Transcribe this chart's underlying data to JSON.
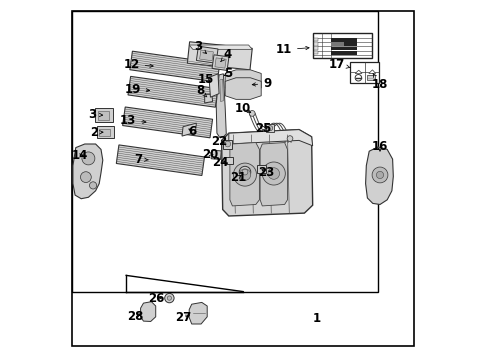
{
  "bg_color": "#ffffff",
  "border_color": "#000000",
  "fig_width": 4.9,
  "fig_height": 3.6,
  "dpi": 100,
  "label_fontsize": 8.5,
  "label_color": "#000000",
  "part_edge_color": "#333333",
  "part_face_color": "#d8d8d8",
  "part_lw": 0.7,
  "cell_line_color": "#555555",
  "cell_line_lw": 0.35,
  "outer_border": [
    0.02,
    0.04,
    0.97,
    0.97
  ],
  "inner_border": [
    0.02,
    0.19,
    0.87,
    0.97
  ],
  "diagonal_line": [
    [
      0.17,
      0.19
    ],
    [
      0.495,
      0.19
    ]
  ],
  "label_1": [
    0.7,
    0.11
  ],
  "arrow_lw": 0.55,
  "arrow_ms": 6
}
